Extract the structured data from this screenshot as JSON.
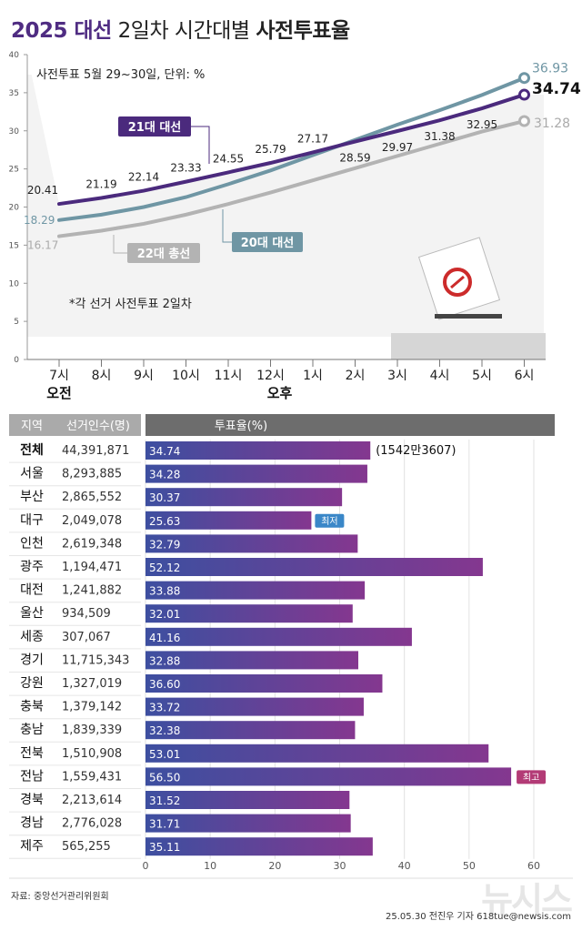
{
  "title": {
    "part1": "2025 대선",
    "part2": "2일차 시간대별",
    "part3": "사전투표율"
  },
  "colors": {
    "s21": "#4b2a7d",
    "s20": "#6f96a4",
    "s22": "#b3b3b3",
    "bar_start": "#3d4fa0",
    "bar_end": "#84378f",
    "lowest": "#3a87c8",
    "highest": "#b33b76"
  },
  "chart_data": [
    {
      "type": "line",
      "subtitle": "사전투표 5월 29~30일, 단위: %",
      "note": "*각 선거 사전투표 2일차",
      "x": [
        "7시",
        "8시",
        "9시",
        "10시",
        "11시",
        "12시",
        "1시",
        "2시",
        "3시",
        "4시",
        "5시",
        "6시"
      ],
      "x_group_labels": [
        "오전",
        "오후"
      ],
      "ylim": [
        0,
        40
      ],
      "y_ticks": [
        "0",
        "5",
        "10",
        "15",
        "20",
        "25",
        "30",
        "35",
        "40"
      ],
      "grid": false,
      "series": [
        {
          "name": "21대 대선",
          "color": "#4b2a7d",
          "values": [
            20.41,
            21.19,
            22.14,
            23.33,
            24.55,
            25.79,
            27.17,
            28.59,
            29.97,
            31.38,
            32.95,
            34.74
          ],
          "labels": [
            "20.41",
            "21.19",
            "22.14",
            "23.33",
            "24.55",
            "25.79",
            "27.17",
            "28.59",
            "29.97",
            "31.38",
            "32.95",
            "34.74"
          ]
        },
        {
          "name": "20대 대선",
          "color": "#6f96a4",
          "values": [
            18.29,
            19.0,
            20.0,
            21.3,
            23.0,
            24.8,
            26.8,
            28.8,
            30.8,
            32.7,
            34.7,
            36.93
          ],
          "labels": [
            "18.29",
            "",
            "",
            "",
            "",
            "",
            "",
            "",
            "",
            "",
            "",
            "36.93"
          ]
        },
        {
          "name": "22대 총선",
          "color": "#b3b3b3",
          "values": [
            16.17,
            16.9,
            17.8,
            19.0,
            20.4,
            21.9,
            23.5,
            25.1,
            26.7,
            28.3,
            29.9,
            31.28
          ],
          "labels": [
            "16.17",
            "",
            "",
            "",
            "",
            "",
            "",
            "",
            "",
            "",
            "",
            "31.28"
          ]
        }
      ]
    },
    {
      "type": "bar",
      "headers": [
        "지역",
        "선거인수(명)",
        "투표율(%)"
      ],
      "categories": [
        "전체",
        "서울",
        "부산",
        "대구",
        "인천",
        "광주",
        "대전",
        "울산",
        "세종",
        "경기",
        "강원",
        "충북",
        "충남",
        "전북",
        "전남",
        "경북",
        "경남",
        "제주"
      ],
      "electors": [
        "44,391,871",
        "8,293,885",
        "2,865,552",
        "2,049,078",
        "2,619,348",
        "1,194,471",
        "1,241,882",
        "934,509",
        "307,067",
        "11,715,343",
        "1,327,019",
        "1,379,142",
        "1,839,339",
        "1,510,908",
        "1,559,431",
        "2,213,614",
        "2,776,028",
        "565,255"
      ],
      "values": [
        34.74,
        34.28,
        30.37,
        25.63,
        32.79,
        52.12,
        33.88,
        32.01,
        41.16,
        32.88,
        36.6,
        33.72,
        32.38,
        53.01,
        56.5,
        31.52,
        31.71,
        35.11
      ],
      "labels": [
        "34.74",
        "34.28",
        "30.37",
        "25.63",
        "32.79",
        "52.12",
        "33.88",
        "32.01",
        "41.16",
        "32.88",
        "36.60",
        "33.72",
        "32.38",
        "53.01",
        "56.50",
        "31.52",
        "31.71",
        "35.11"
      ],
      "total_voters": "(1542만3607)",
      "lowest_badge": "최저",
      "highest_badge": "최고",
      "lowest_index": 3,
      "highest_index": 14,
      "xlim": [
        0,
        60
      ],
      "x_ticks": [
        "0",
        "10",
        "20",
        "30",
        "40",
        "50",
        "60"
      ]
    }
  ],
  "footer": {
    "source": "자료: 중앙선거관리위원회",
    "credit": "25.05.30 전진우 기자 618tue@newsis.com",
    "watermark": "뉴시스"
  }
}
